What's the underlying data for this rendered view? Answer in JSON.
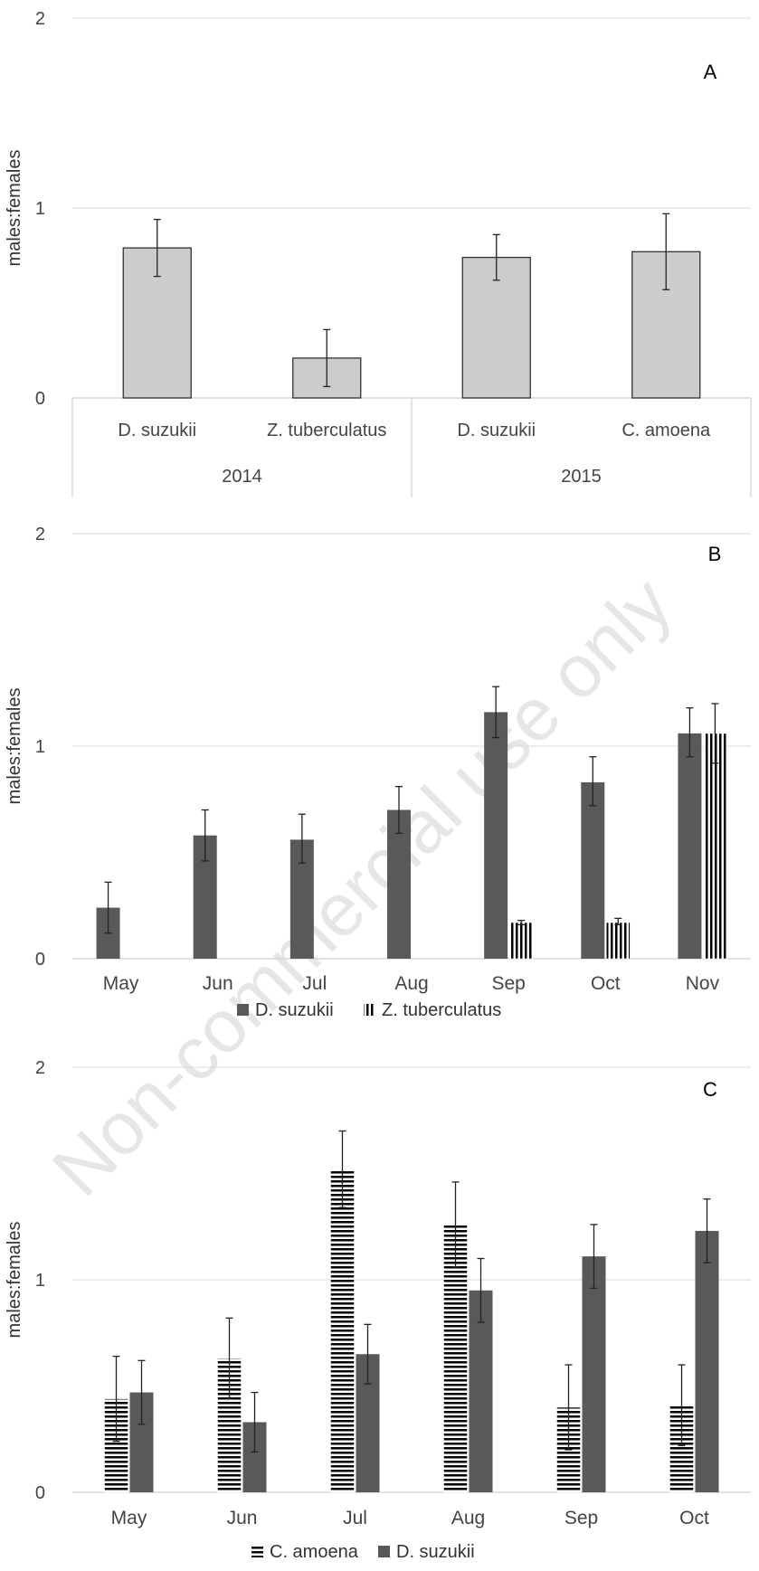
{
  "watermark": "Non-commercial use only",
  "chart_data": [
    {
      "type": "bar",
      "panel_label": "A",
      "ylabel": "males:females",
      "ylim": [
        0,
        2
      ],
      "yticks": [
        "0",
        "1",
        "2"
      ],
      "groups": [
        {
          "name": "2014",
          "categories": [
            "D. suzukii",
            "Z. tuberculatus"
          ]
        },
        {
          "name": "2015",
          "categories": [
            "D. suzukii",
            "C. amoena"
          ]
        }
      ],
      "bars": [
        {
          "category": "D. suzukii",
          "group": "2014",
          "value": 0.79,
          "err_low": 0.64,
          "err_high": 0.94
        },
        {
          "category": "Z. tuberculatus",
          "group": "2014",
          "value": 0.21,
          "err_low": 0.06,
          "err_high": 0.36
        },
        {
          "category": "D. suzukii",
          "group": "2015",
          "value": 0.74,
          "err_low": 0.62,
          "err_high": 0.86
        },
        {
          "category": "C. amoena",
          "group": "2015",
          "value": 0.77,
          "err_low": 0.57,
          "err_high": 0.97
        }
      ],
      "colors": {
        "bar": "#cccccc",
        "outline": "#333333"
      }
    },
    {
      "type": "bar",
      "panel_label": "B",
      "ylabel": "males:females",
      "ylim": [
        0,
        2
      ],
      "yticks": [
        "0",
        "1",
        "2"
      ],
      "categories": [
        "May",
        "Jun",
        "Jul",
        "Aug",
        "Sep",
        "Oct",
        "Nov"
      ],
      "series": [
        {
          "name": "D. suzukii",
          "pattern": "solid",
          "values": [
            0.24,
            0.58,
            0.56,
            0.7,
            1.16,
            0.83,
            1.06
          ],
          "err_low": [
            0.12,
            0.46,
            0.45,
            0.59,
            1.04,
            0.72,
            0.95
          ],
          "err_high": [
            0.36,
            0.7,
            0.68,
            0.81,
            1.28,
            0.95,
            1.18
          ]
        },
        {
          "name": "Z. tuberculatus",
          "pattern": "vertical-stripes",
          "values": [
            null,
            null,
            null,
            null,
            0.17,
            0.17,
            1.06
          ],
          "err_low": [
            null,
            null,
            null,
            null,
            0.16,
            0.16,
            0.92
          ],
          "err_high": [
            null,
            null,
            null,
            null,
            0.18,
            0.19,
            1.2
          ]
        }
      ],
      "legend_position": "bottom",
      "colors": {
        "solid": "#595959"
      }
    },
    {
      "type": "bar",
      "panel_label": "C",
      "ylabel": "males:females",
      "ylim": [
        0,
        2
      ],
      "yticks": [
        "0",
        "1",
        "2"
      ],
      "categories": [
        "May",
        "Jun",
        "Jul",
        "Aug",
        "Sep",
        "Oct"
      ],
      "series": [
        {
          "name": "C. amoena",
          "pattern": "horizontal-stripes",
          "values": [
            0.44,
            0.63,
            1.52,
            1.26,
            0.4,
            0.41
          ],
          "err_low": [
            0.24,
            0.44,
            1.34,
            1.06,
            0.2,
            0.22
          ],
          "err_high": [
            0.64,
            0.82,
            1.7,
            1.46,
            0.6,
            0.6
          ]
        },
        {
          "name": "D. suzukii",
          "pattern": "solid",
          "values": [
            0.47,
            0.33,
            0.65,
            0.95,
            1.11,
            1.23
          ],
          "err_low": [
            0.32,
            0.19,
            0.51,
            0.8,
            0.96,
            1.08
          ],
          "err_high": [
            0.62,
            0.47,
            0.79,
            1.1,
            1.26,
            1.38
          ]
        }
      ],
      "legend_position": "bottom",
      "colors": {
        "solid": "#595959"
      }
    }
  ]
}
